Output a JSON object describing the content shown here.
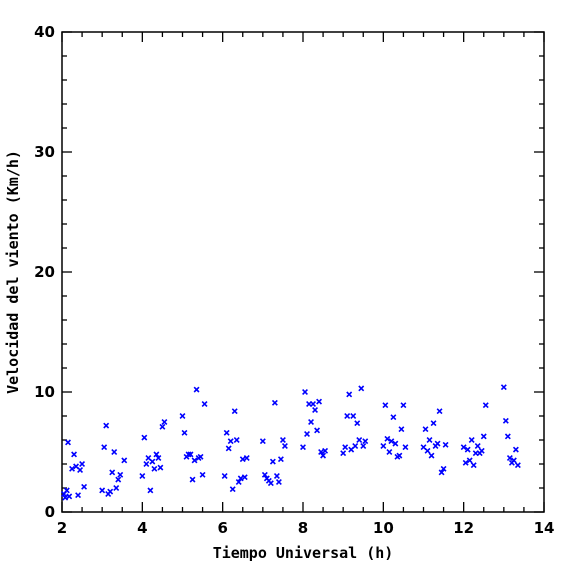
{
  "chart_data": {
    "type": "scatter",
    "title": "",
    "xlabel": "Tiempo Universal (h)",
    "ylabel": "Velocidad del viento (Km/h)",
    "xlim": [
      2,
      14
    ],
    "ylim": [
      0,
      40
    ],
    "xticks": [
      2,
      4,
      6,
      8,
      10,
      12,
      14
    ],
    "yticks": [
      0,
      10,
      20,
      30,
      40
    ],
    "marker": "x",
    "color": "#0000ff",
    "grid": false,
    "series": [
      {
        "points": [
          [
            2.05,
            1.5
          ],
          [
            2.08,
            1.2
          ],
          [
            2.12,
            1.8
          ],
          [
            2.15,
            5.8
          ],
          [
            2.18,
            1.3
          ],
          [
            2.25,
            3.6
          ],
          [
            2.3,
            4.8
          ],
          [
            2.35,
            3.8
          ],
          [
            2.4,
            1.4
          ],
          [
            2.45,
            3.5
          ],
          [
            2.5,
            4.0
          ],
          [
            2.55,
            2.1
          ],
          [
            3.0,
            1.8
          ],
          [
            3.05,
            5.4
          ],
          [
            3.1,
            7.2
          ],
          [
            3.15,
            1.5
          ],
          [
            3.2,
            1.7
          ],
          [
            3.25,
            3.3
          ],
          [
            3.3,
            5.0
          ],
          [
            3.35,
            2.0
          ],
          [
            3.4,
            2.7
          ],
          [
            3.45,
            3.1
          ],
          [
            3.55,
            4.3
          ],
          [
            4.0,
            3.0
          ],
          [
            4.05,
            6.2
          ],
          [
            4.1,
            4.0
          ],
          [
            4.15,
            4.5
          ],
          [
            4.2,
            1.8
          ],
          [
            4.25,
            4.2
          ],
          [
            4.3,
            3.6
          ],
          [
            4.35,
            4.8
          ],
          [
            4.4,
            4.5
          ],
          [
            4.45,
            3.7
          ],
          [
            4.5,
            7.1
          ],
          [
            4.55,
            7.5
          ],
          [
            5.0,
            8.0
          ],
          [
            5.05,
            6.6
          ],
          [
            5.1,
            4.6
          ],
          [
            5.15,
            4.8
          ],
          [
            5.2,
            4.8
          ],
          [
            5.25,
            2.7
          ],
          [
            5.3,
            4.3
          ],
          [
            5.35,
            10.2
          ],
          [
            5.4,
            4.5
          ],
          [
            5.45,
            4.6
          ],
          [
            5.5,
            3.1
          ],
          [
            5.55,
            9.0
          ],
          [
            6.05,
            3.0
          ],
          [
            6.1,
            6.6
          ],
          [
            6.15,
            5.3
          ],
          [
            6.2,
            5.9
          ],
          [
            6.25,
            1.9
          ],
          [
            6.3,
            8.4
          ],
          [
            6.35,
            6.0
          ],
          [
            6.4,
            2.5
          ],
          [
            6.45,
            2.8
          ],
          [
            6.5,
            4.4
          ],
          [
            6.55,
            2.9
          ],
          [
            6.6,
            4.5
          ],
          [
            7.0,
            5.9
          ],
          [
            7.05,
            3.1
          ],
          [
            7.1,
            2.8
          ],
          [
            7.15,
            2.6
          ],
          [
            7.2,
            2.4
          ],
          [
            7.25,
            4.2
          ],
          [
            7.3,
            9.1
          ],
          [
            7.35,
            3.0
          ],
          [
            7.4,
            2.5
          ],
          [
            7.45,
            4.4
          ],
          [
            7.5,
            6.0
          ],
          [
            7.55,
            5.5
          ],
          [
            8.0,
            5.4
          ],
          [
            8.05,
            10.0
          ],
          [
            8.1,
            6.5
          ],
          [
            8.15,
            9.0
          ],
          [
            8.2,
            7.5
          ],
          [
            8.25,
            9.0
          ],
          [
            8.3,
            8.5
          ],
          [
            8.35,
            6.8
          ],
          [
            8.4,
            9.2
          ],
          [
            8.45,
            5.0
          ],
          [
            8.5,
            4.7
          ],
          [
            8.55,
            5.1
          ],
          [
            9.0,
            4.9
          ],
          [
            9.05,
            5.4
          ],
          [
            9.1,
            8.0
          ],
          [
            9.15,
            9.8
          ],
          [
            9.2,
            5.2
          ],
          [
            9.25,
            8.0
          ],
          [
            9.3,
            5.5
          ],
          [
            9.35,
            7.4
          ],
          [
            9.4,
            6.0
          ],
          [
            9.45,
            10.3
          ],
          [
            9.5,
            5.5
          ],
          [
            9.55,
            5.9
          ],
          [
            10.0,
            5.5
          ],
          [
            10.05,
            8.9
          ],
          [
            10.1,
            6.1
          ],
          [
            10.15,
            5.0
          ],
          [
            10.2,
            5.9
          ],
          [
            10.25,
            7.9
          ],
          [
            10.3,
            5.7
          ],
          [
            10.35,
            4.6
          ],
          [
            10.4,
            4.7
          ],
          [
            10.45,
            6.9
          ],
          [
            10.5,
            8.9
          ],
          [
            10.55,
            5.4
          ],
          [
            11.0,
            5.4
          ],
          [
            11.05,
            6.9
          ],
          [
            11.1,
            5.1
          ],
          [
            11.15,
            6.0
          ],
          [
            11.2,
            4.7
          ],
          [
            11.25,
            7.4
          ],
          [
            11.3,
            5.5
          ],
          [
            11.35,
            5.7
          ],
          [
            11.4,
            8.4
          ],
          [
            11.45,
            3.3
          ],
          [
            11.5,
            3.6
          ],
          [
            11.55,
            5.6
          ],
          [
            12.0,
            5.4
          ],
          [
            12.05,
            4.1
          ],
          [
            12.1,
            5.2
          ],
          [
            12.15,
            4.3
          ],
          [
            12.2,
            6.0
          ],
          [
            12.25,
            3.9
          ],
          [
            12.3,
            4.9
          ],
          [
            12.35,
            5.5
          ],
          [
            12.4,
            4.9
          ],
          [
            12.45,
            5.1
          ],
          [
            12.5,
            6.3
          ],
          [
            12.55,
            8.9
          ],
          [
            13.0,
            10.4
          ],
          [
            13.05,
            7.6
          ],
          [
            13.1,
            6.3
          ],
          [
            13.15,
            4.5
          ],
          [
            13.2,
            4.1
          ],
          [
            13.25,
            4.3
          ],
          [
            13.3,
            5.2
          ],
          [
            13.35,
            3.9
          ]
        ]
      }
    ]
  }
}
